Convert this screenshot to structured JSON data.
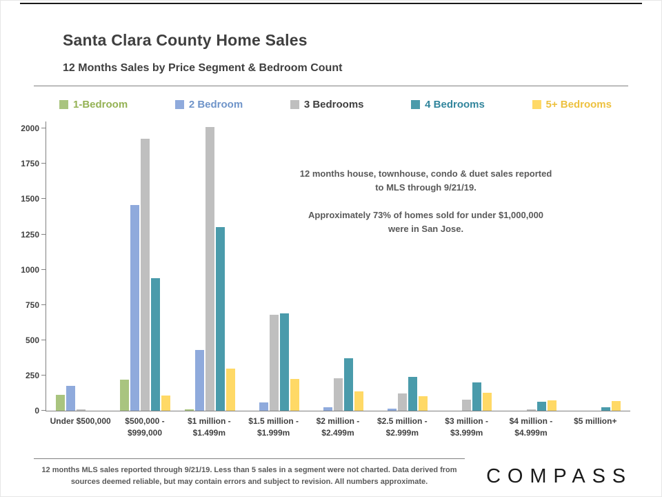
{
  "page": {
    "title": "Santa Clara County Home Sales",
    "subtitle": "12 Months Sales by Price Segment & Bedroom Count",
    "annotation_line1": "12 months house, townhouse, condo & duet sales reported to MLS through 9/21/19.",
    "annotation_line2": "Approximately 73% of homes sold for under $1,000,000 were in San Jose.",
    "footer": "12 months MLS sales reported through 9/21/19. Less than 5 sales in a segment were not charted. Data derived from sources deemed reliable, but may contain errors and subject to revision. All numbers approximate.",
    "logo": "COMPASS"
  },
  "chart_data": {
    "type": "bar",
    "title": "Santa Clara County Home Sales — 12 Months Sales by Price Segment & Bedroom Count",
    "xlabel": "",
    "ylabel": "",
    "ylim": [
      0,
      2000
    ],
    "yticks": [
      0,
      250,
      500,
      750,
      1000,
      1250,
      1500,
      1750,
      2000
    ],
    "grid": false,
    "legend_position": "top",
    "categories": [
      "Under $500,000",
      "$500,000 - $999,000",
      "$1 million - $1.499m",
      "$1.5 million - $1.999m",
      "$2 million - $2.499m",
      "$2.5 million - $2.999m",
      "$3 million - $3.999m",
      "$4 million - $4.999m",
      "$5 million+"
    ],
    "series": [
      {
        "name": "1-Bedroom",
        "color": "#a9c47f",
        "label_color": "#94b254",
        "values": [
          115,
          220,
          10,
          0,
          0,
          0,
          0,
          0,
          0
        ]
      },
      {
        "name": "2 Bedroom",
        "color": "#8faadc",
        "label_color": "#6f94c9",
        "values": [
          175,
          1460,
          430,
          60,
          25,
          15,
          0,
          0,
          0
        ]
      },
      {
        "name": "3 Bedrooms",
        "color": "#bfbfbf",
        "label_color": "#404040",
        "values": [
          10,
          1930,
          2010,
          680,
          230,
          120,
          80,
          10,
          0
        ]
      },
      {
        "name": "4 Bedrooms",
        "color": "#4a9bab",
        "label_color": "#31859c",
        "values": [
          0,
          940,
          1300,
          690,
          370,
          240,
          200,
          65,
          25
        ]
      },
      {
        "name": "5+ Bedrooms",
        "color": "#ffd966",
        "label_color": "#edc13f",
        "values": [
          0,
          110,
          300,
          225,
          135,
          105,
          125,
          75,
          70
        ]
      }
    ]
  }
}
